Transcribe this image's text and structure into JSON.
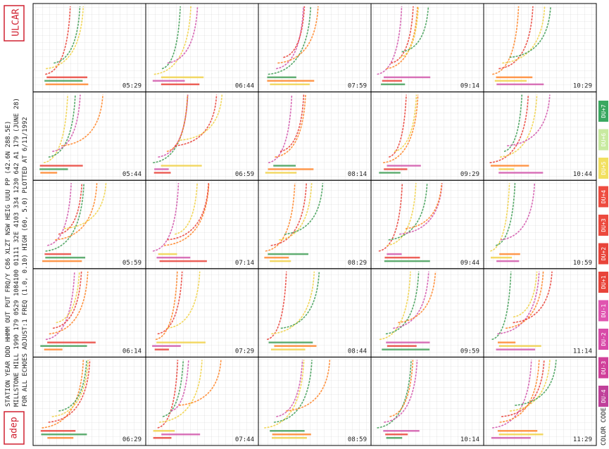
{
  "header": {
    "logo": "ULCAR",
    "badge": "adep"
  },
  "info_lines": [
    "STATION         YEAR DDD HHMM OUT PUT FRQ/Y C86 XLZT NSW HEIG UUU PP  (42.6N  288.5E)",
    "MILLSTONE HILL  1990 179 0529 1084100 01111 32E 4103 334 1230 642 A1   179  (JUNE 28)",
    "FOR ALL ECHOES  ADJUST:1  FREQ (1.0, 0.10)  HIGH (60, 5.0)  PLOTTED AT 6/11/1992"
  ],
  "panels": [
    [
      "05:29",
      "06:44",
      "07:59",
      "09:14",
      "10:29"
    ],
    [
      "05:44",
      "06:59",
      "08:14",
      "09:29",
      "10:44"
    ],
    [
      "05:59",
      "07:14",
      "08:29",
      "09:44",
      "10:59"
    ],
    [
      "06:14",
      "07:29",
      "08:44",
      "09:59",
      "11:14"
    ],
    [
      "06:29",
      "07:44",
      "08:59",
      "10:14",
      "11:29"
    ]
  ],
  "color_code": {
    "title": "COLOR CODE",
    "items": [
      {
        "label": "DU-4",
        "color": "#c0409a"
      },
      {
        "label": "DU-3",
        "color": "#d0409a"
      },
      {
        "label": "DU-2",
        "color": "#d84aa8"
      },
      {
        "label": "DU-1",
        "color": "#e055b0"
      },
      {
        "label": "DU+1",
        "color": "#e8443a"
      },
      {
        "label": "DU+2",
        "color": "#e8443a"
      },
      {
        "label": "DU+3",
        "color": "#ec4a3e"
      },
      {
        "label": "DU+4",
        "color": "#ee4c40"
      },
      {
        "label": "DU+5",
        "color": "#f2e060"
      },
      {
        "label": "DU+6",
        "color": "#c8eaa0"
      },
      {
        "label": "DU+7",
        "color": "#3aa860"
      }
    ]
  }
}
